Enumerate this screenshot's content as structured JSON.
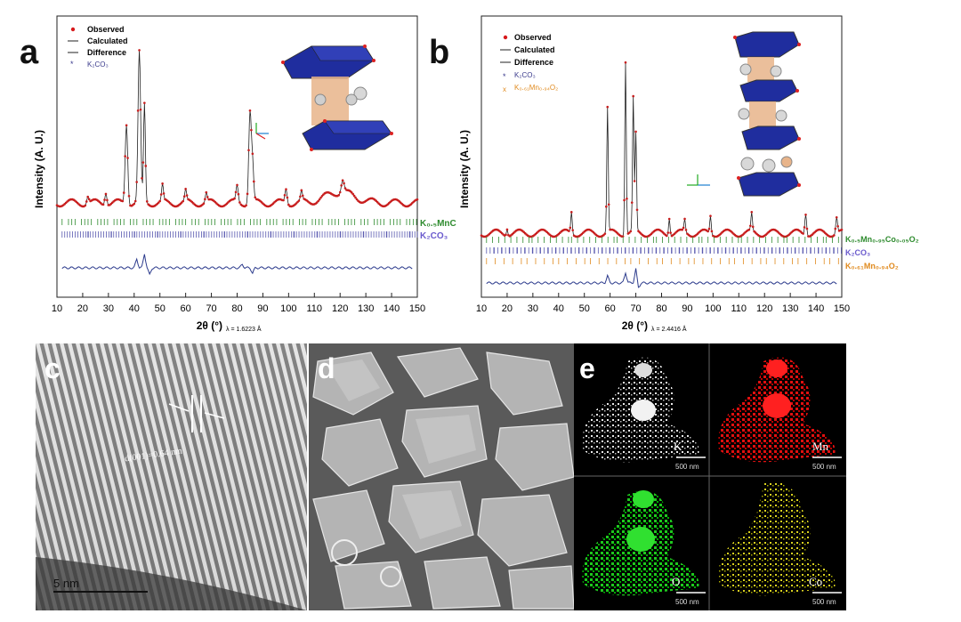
{
  "panels": {
    "a": {
      "letter": "a",
      "ylabel": "Intensity (A. U.)",
      "xlabel_main": "2θ (°)",
      "xlabel_sub": "λ = 1.6223 Å",
      "xticks": [
        "10",
        "20",
        "30",
        "40",
        "50",
        "60",
        "70",
        "80",
        "90",
        "100",
        "110",
        "120",
        "130",
        "140",
        "150"
      ],
      "legend": [
        {
          "label": "Observed",
          "color": "#d7191c",
          "marker": "dot"
        },
        {
          "label": "Calculated",
          "color": "#222222",
          "marker": "line"
        },
        {
          "label": "Difference",
          "color": "#222222",
          "marker": "line"
        },
        {
          "label": "K₂CO₃",
          "color": "#3a3a8c",
          "marker": "star"
        }
      ],
      "phase_labels": [
        {
          "text": "K₀.₅MnC",
          "color": "#2e8b2e"
        },
        {
          "text": "K₂CO₃",
          "color": "#6a5acd"
        }
      ],
      "colors": {
        "observed": "#c81e1e",
        "calculated": "#222222",
        "difference": "#2b3a8c",
        "tick_green": "#2e8b2e",
        "tick_blue": "#5a5ab0"
      }
    },
    "b": {
      "letter": "b",
      "ylabel": "Intensity (A. U.)",
      "xlabel_main": "2θ (°)",
      "xlabel_sub": "λ = 2.4416 Å",
      "xticks": [
        "10",
        "20",
        "30",
        "40",
        "50",
        "60",
        "70",
        "80",
        "90",
        "100",
        "110",
        "120",
        "130",
        "140",
        "150"
      ],
      "legend": [
        {
          "label": "Observed",
          "color": "#d7191c",
          "marker": "dot"
        },
        {
          "label": "Calculated",
          "color": "#222222",
          "marker": "line"
        },
        {
          "label": "Difference",
          "color": "#222222",
          "marker": "line"
        },
        {
          "label": "K₂CO₃",
          "color": "#3a3a8c",
          "marker": "star"
        },
        {
          "label": "K₀.₆₁Mn₀.₉₄O₂",
          "color": "#e08a1e",
          "marker": "x"
        }
      ],
      "phase_labels": [
        {
          "text": "K₀.₅Mn₀.₉₅Co₀.₀₅O₂",
          "color": "#2e8b2e"
        },
        {
          "text": "K₂CO₃",
          "color": "#6a5acd"
        },
        {
          "text": "K₀.₆₁Mn₀.₉₄O₂",
          "color": "#e08a1e"
        }
      ],
      "colors": {
        "observed": "#c81e1e",
        "calculated": "#222222",
        "difference": "#2b3a8c",
        "tick_green": "#2e8b2e",
        "tick_blue": "#5a5ab0",
        "tick_orange": "#e08a1e"
      }
    },
    "c": {
      "letter": "c",
      "annotation": "d(001)=0.64 nm",
      "scalebar": "5 nm"
    },
    "d": {
      "letter": "d"
    },
    "e": {
      "letter": "e",
      "maps": [
        {
          "element": "K",
          "scalebar": "500 nm",
          "color": "#e8e8e8"
        },
        {
          "element": "Mn",
          "scalebar": "500 nm",
          "color": "#e01010"
        },
        {
          "element": "O",
          "scalebar": "500 nm",
          "color": "#1ec81e"
        },
        {
          "element": "Co",
          "scalebar": "500 nm",
          "color": "#d8d020"
        }
      ]
    }
  }
}
